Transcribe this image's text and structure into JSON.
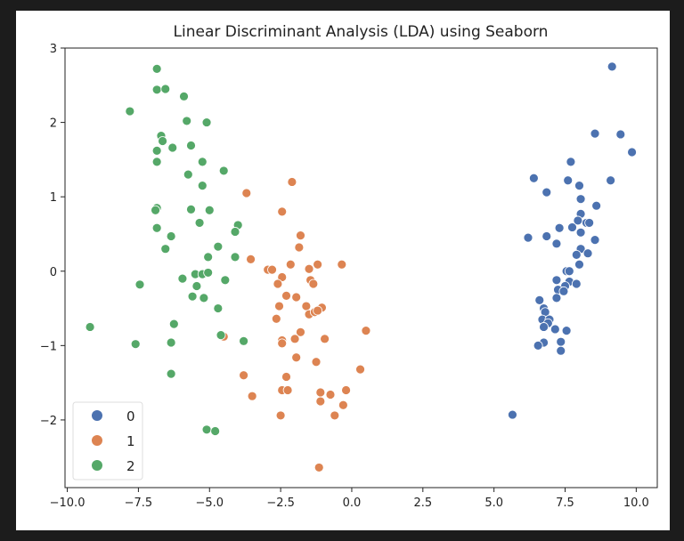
{
  "chart_data": {
    "type": "scatter",
    "title": "Linear Discriminant Analysis (LDA) using Seaborn",
    "xlabel": "",
    "ylabel": "",
    "xlim": [
      -10.08,
      10.74
    ],
    "ylim": [
      -2.91,
      3.0
    ],
    "xticks": [
      -10.0,
      -7.5,
      -5.0,
      -2.5,
      0.0,
      2.5,
      5.0,
      7.5,
      10.0
    ],
    "xtick_labels": [
      "−10.0",
      "−7.5",
      "−5.0",
      "−2.5",
      "0.0",
      "2.5",
      "5.0",
      "7.5",
      "10.0"
    ],
    "yticks": [
      -2,
      -1,
      0,
      1,
      2,
      3
    ],
    "ytick_labels": [
      "−2",
      "−1",
      "0",
      "1",
      "2",
      "3"
    ],
    "grid": false,
    "legend": {
      "placement": "lower-left",
      "entries": [
        "0",
        "1",
        "2"
      ]
    },
    "series": [
      {
        "name": "0",
        "color": "#4c72b0",
        "points": [
          [
            9.15,
            2.75
          ],
          [
            8.55,
            1.85
          ],
          [
            9.45,
            1.84
          ],
          [
            9.85,
            1.6
          ],
          [
            7.7,
            1.47
          ],
          [
            6.4,
            1.25
          ],
          [
            7.6,
            1.22
          ],
          [
            8.0,
            1.15
          ],
          [
            9.1,
            1.22
          ],
          [
            6.85,
            1.06
          ],
          [
            8.05,
            0.97
          ],
          [
            8.6,
            0.88
          ],
          [
            8.05,
            0.77
          ],
          [
            7.95,
            0.68
          ],
          [
            8.25,
            0.65
          ],
          [
            8.35,
            0.65
          ],
          [
            7.3,
            0.58
          ],
          [
            7.75,
            0.59
          ],
          [
            8.05,
            0.52
          ],
          [
            6.2,
            0.45
          ],
          [
            6.85,
            0.47
          ],
          [
            8.55,
            0.42
          ],
          [
            7.2,
            0.37
          ],
          [
            8.05,
            0.3
          ],
          [
            7.9,
            0.22
          ],
          [
            8.3,
            0.24
          ],
          [
            8.0,
            0.09
          ],
          [
            7.55,
            0.0
          ],
          [
            7.65,
            0.0
          ],
          [
            7.2,
            -0.12
          ],
          [
            7.65,
            -0.14
          ],
          [
            7.9,
            -0.17
          ],
          [
            7.5,
            -0.2
          ],
          [
            7.25,
            -0.25
          ],
          [
            7.45,
            -0.27
          ],
          [
            7.2,
            -0.36
          ],
          [
            6.6,
            -0.39
          ],
          [
            6.75,
            -0.5
          ],
          [
            6.8,
            -0.55
          ],
          [
            6.7,
            -0.65
          ],
          [
            6.95,
            -0.65
          ],
          [
            6.9,
            -0.7
          ],
          [
            6.75,
            -0.75
          ],
          [
            7.15,
            -0.78
          ],
          [
            7.55,
            -0.8
          ],
          [
            6.75,
            -0.96
          ],
          [
            6.55,
            -1.0
          ],
          [
            7.35,
            -0.95
          ],
          [
            7.35,
            -1.07
          ],
          [
            5.65,
            -1.93
          ]
        ]
      },
      {
        "name": "1",
        "color": "#dd8452",
        "points": [
          [
            -2.1,
            1.2
          ],
          [
            -3.7,
            1.05
          ],
          [
            -2.45,
            0.8
          ],
          [
            -1.8,
            0.48
          ],
          [
            -1.85,
            0.32
          ],
          [
            -3.55,
            0.16
          ],
          [
            -2.95,
            0.02
          ],
          [
            -2.8,
            0.02
          ],
          [
            -2.15,
            0.09
          ],
          [
            -1.5,
            0.03
          ],
          [
            -1.2,
            0.09
          ],
          [
            -0.35,
            0.09
          ],
          [
            -2.45,
            -0.08
          ],
          [
            -2.6,
            -0.17
          ],
          [
            -1.45,
            -0.12
          ],
          [
            -1.35,
            -0.17
          ],
          [
            -2.3,
            -0.33
          ],
          [
            -1.95,
            -0.35
          ],
          [
            -2.55,
            -0.47
          ],
          [
            -1.6,
            -0.47
          ],
          [
            -1.05,
            -0.49
          ],
          [
            -1.5,
            -0.58
          ],
          [
            -1.3,
            -0.55
          ],
          [
            -1.2,
            -0.53
          ],
          [
            -2.65,
            -0.64
          ],
          [
            -1.8,
            -0.82
          ],
          [
            0.5,
            -0.8
          ],
          [
            -2.45,
            -0.93
          ],
          [
            -2.0,
            -0.91
          ],
          [
            -0.95,
            -0.91
          ],
          [
            -2.45,
            -0.97
          ],
          [
            -4.5,
            -0.88
          ],
          [
            -1.95,
            -1.16
          ],
          [
            -1.25,
            -1.22
          ],
          [
            0.3,
            -1.32
          ],
          [
            -3.8,
            -1.4
          ],
          [
            -2.3,
            -1.42
          ],
          [
            -2.45,
            -1.6
          ],
          [
            -2.25,
            -1.6
          ],
          [
            -1.1,
            -1.63
          ],
          [
            -0.75,
            -1.66
          ],
          [
            -0.2,
            -1.6
          ],
          [
            -3.5,
            -1.68
          ],
          [
            -1.1,
            -1.75
          ],
          [
            -0.3,
            -1.8
          ],
          [
            -2.5,
            -1.94
          ],
          [
            -0.6,
            -1.94
          ],
          [
            -1.15,
            -2.64
          ]
        ]
      },
      {
        "name": "2",
        "color": "#55a868",
        "points": [
          [
            -6.85,
            2.72
          ],
          [
            -6.85,
            2.44
          ],
          [
            -6.55,
            2.45
          ],
          [
            -5.9,
            2.35
          ],
          [
            -7.8,
            2.15
          ],
          [
            -5.8,
            2.02
          ],
          [
            -5.1,
            2.0
          ],
          [
            -6.7,
            1.82
          ],
          [
            -6.65,
            1.75
          ],
          [
            -6.85,
            1.62
          ],
          [
            -6.3,
            1.66
          ],
          [
            -5.65,
            1.69
          ],
          [
            -6.85,
            1.47
          ],
          [
            -5.25,
            1.47
          ],
          [
            -4.5,
            1.35
          ],
          [
            -5.75,
            1.3
          ],
          [
            -5.25,
            1.15
          ],
          [
            -6.85,
            0.85
          ],
          [
            -6.9,
            0.82
          ],
          [
            -5.65,
            0.83
          ],
          [
            -5.0,
            0.82
          ],
          [
            -5.35,
            0.65
          ],
          [
            -4.0,
            0.62
          ],
          [
            -4.1,
            0.53
          ],
          [
            -6.85,
            0.58
          ],
          [
            -6.35,
            0.47
          ],
          [
            -6.55,
            0.3
          ],
          [
            -4.7,
            0.33
          ],
          [
            -5.05,
            0.19
          ],
          [
            -4.1,
            0.19
          ],
          [
            -7.45,
            -0.18
          ],
          [
            -5.95,
            -0.1
          ],
          [
            -5.5,
            -0.04
          ],
          [
            -5.25,
            -0.04
          ],
          [
            -5.05,
            -0.02
          ],
          [
            -5.45,
            -0.2
          ],
          [
            -4.45,
            -0.12
          ],
          [
            -5.6,
            -0.34
          ],
          [
            -5.2,
            -0.36
          ],
          [
            -4.7,
            -0.5
          ],
          [
            -9.2,
            -0.75
          ],
          [
            -6.25,
            -0.71
          ],
          [
            -4.6,
            -0.86
          ],
          [
            -7.6,
            -0.98
          ],
          [
            -6.35,
            -0.96
          ],
          [
            -3.8,
            -0.94
          ],
          [
            -6.35,
            -1.38
          ],
          [
            -5.1,
            -2.13
          ],
          [
            -4.8,
            -2.15
          ]
        ]
      }
    ]
  }
}
